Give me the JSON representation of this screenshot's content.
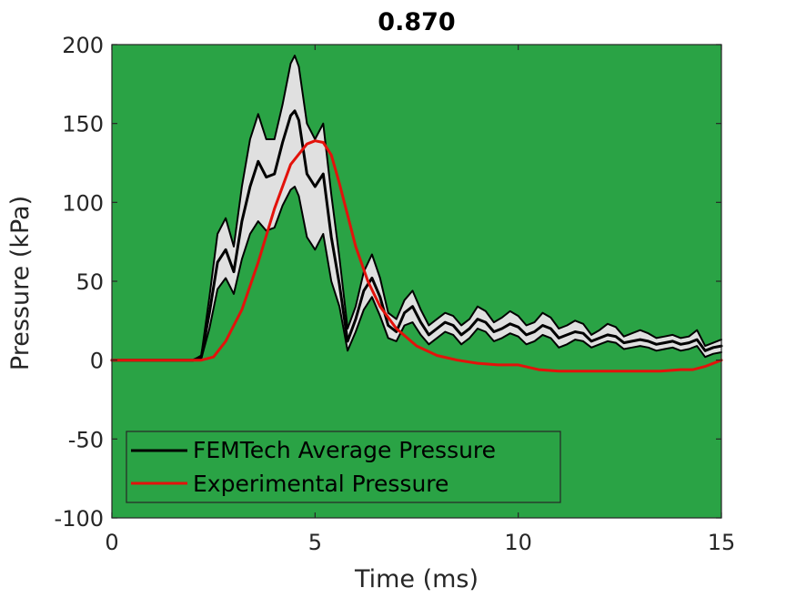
{
  "chart_data": {
    "type": "line",
    "title": "0.870",
    "xlabel": "Time (ms)",
    "ylabel": "Pressure (kPa)",
    "xlim": [
      0,
      15
    ],
    "ylim": [
      -100,
      200
    ],
    "xticks": [
      0,
      5,
      10,
      15
    ],
    "xtick_labels": [
      "0",
      "5",
      "10",
      "15"
    ],
    "yticks": [
      200,
      150,
      100,
      50,
      0,
      -50,
      -100
    ],
    "ytick_labels": [
      "200",
      "150",
      "100",
      "50",
      "0",
      "-50",
      "-100"
    ],
    "grid": false,
    "legend_position": "bottom-left",
    "colors": {
      "plot_background": "#2aa345",
      "band_fill": "#e0e0e0",
      "femtech": "#000000",
      "experimental": "#e3120b",
      "legend_background": "#2aa345"
    },
    "series": [
      {
        "name": "FEMTech Average Pressure",
        "color": "#000000",
        "x": [
          0,
          2.0,
          2.2,
          2.4,
          2.6,
          2.8,
          3.0,
          3.2,
          3.4,
          3.6,
          3.8,
          4.0,
          4.2,
          4.4,
          4.5,
          4.6,
          4.8,
          5.0,
          5.2,
          5.4,
          5.6,
          5.8,
          6.0,
          6.2,
          6.4,
          6.6,
          6.8,
          7.0,
          7.2,
          7.4,
          7.6,
          7.8,
          8.0,
          8.2,
          8.4,
          8.6,
          8.8,
          9.0,
          9.2,
          9.4,
          9.6,
          9.8,
          10.0,
          10.2,
          10.4,
          10.6,
          10.8,
          11.0,
          11.2,
          11.4,
          11.6,
          11.8,
          12.0,
          12.2,
          12.4,
          12.6,
          12.8,
          13.0,
          13.2,
          13.4,
          13.6,
          13.8,
          14.0,
          14.2,
          14.4,
          14.6,
          14.8,
          15.0
        ],
        "values": [
          0,
          0,
          2,
          30,
          62,
          70,
          56,
          88,
          110,
          126,
          116,
          118,
          138,
          155,
          158,
          152,
          118,
          110,
          118,
          78,
          48,
          12,
          26,
          44,
          52,
          40,
          22,
          18,
          30,
          34,
          24,
          16,
          20,
          24,
          22,
          16,
          20,
          26,
          24,
          18,
          20,
          23,
          21,
          16,
          18,
          22,
          20,
          14,
          16,
          18,
          17,
          12,
          14,
          16,
          15,
          11,
          12,
          13,
          12,
          10,
          11,
          12,
          10,
          11,
          13,
          6,
          8,
          9
        ],
        "band_upper": [
          0,
          0,
          3,
          40,
          80,
          90,
          72,
          110,
          140,
          156,
          140,
          140,
          162,
          188,
          193,
          186,
          150,
          140,
          150,
          105,
          65,
          20,
          34,
          56,
          67,
          52,
          30,
          26,
          38,
          44,
          32,
          22,
          26,
          30,
          28,
          22,
          26,
          34,
          31,
          24,
          27,
          31,
          28,
          22,
          24,
          30,
          27,
          20,
          22,
          25,
          23,
          16,
          19,
          23,
          21,
          15,
          17,
          19,
          17,
          14,
          15,
          16,
          14,
          15,
          19,
          9,
          11,
          13
        ],
        "band_lower": [
          0,
          0,
          1,
          20,
          45,
          52,
          42,
          64,
          80,
          88,
          82,
          84,
          98,
          108,
          110,
          104,
          78,
          70,
          80,
          50,
          34,
          6,
          18,
          32,
          40,
          28,
          14,
          12,
          22,
          24,
          16,
          10,
          14,
          18,
          16,
          10,
          14,
          20,
          18,
          12,
          14,
          17,
          15,
          10,
          12,
          16,
          14,
          8,
          10,
          13,
          12,
          8,
          10,
          12,
          11,
          7,
          8,
          9,
          8,
          6,
          7,
          8,
          6,
          7,
          9,
          2,
          4,
          5
        ]
      },
      {
        "name": "Experimental Pressure",
        "color": "#e3120b",
        "x": [
          0,
          2.2,
          2.5,
          2.8,
          3.2,
          3.6,
          4.0,
          4.4,
          4.8,
          5.0,
          5.2,
          5.4,
          5.6,
          5.8,
          6.0,
          6.3,
          6.6,
          7.0,
          7.5,
          8.0,
          8.5,
          9.0,
          9.5,
          10.0,
          10.5,
          11.0,
          11.5,
          12.0,
          12.5,
          13.0,
          13.5,
          14.0,
          14.3,
          14.6,
          15.0
        ],
        "values": [
          0,
          0,
          2,
          12,
          32,
          62,
          96,
          124,
          137,
          139,
          138,
          130,
          112,
          92,
          72,
          50,
          34,
          20,
          9,
          3,
          0,
          -2,
          -3,
          -3,
          -6,
          -7,
          -7,
          -7,
          -7,
          -7,
          -7,
          -6,
          -6,
          -4,
          0
        ]
      }
    ]
  }
}
